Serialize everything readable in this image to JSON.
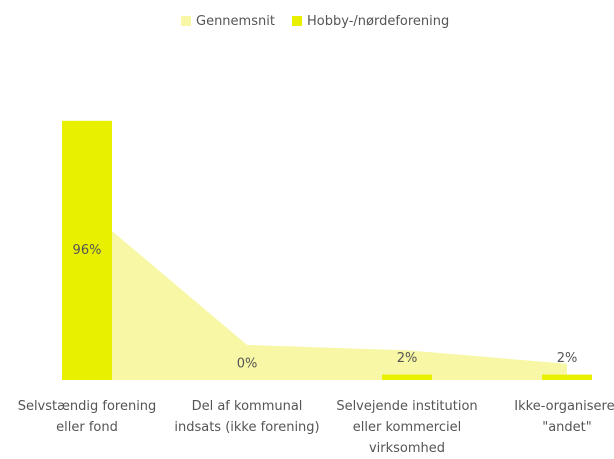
{
  "chart_data": {
    "type": "bar",
    "categories": [
      "Selvstændig forening eller fond",
      "Del af kommunal indsats (ikke forening)",
      "Selvejende institution eller kommerciel virksomhed",
      "Ikke-organiseret \"andet\""
    ],
    "series": [
      {
        "name": "Gennemsnit",
        "type": "area",
        "color": "#f7f7a6",
        "values": [
          63,
          13,
          11,
          6
        ]
      },
      {
        "name": "Hobby-/nørdeforening",
        "type": "bar",
        "color": "#e8f000",
        "values": [
          96,
          0,
          2,
          2
        ],
        "value_labels": [
          "96%",
          "0%",
          "2%",
          "2%"
        ]
      }
    ],
    "ylim": [
      0,
      100
    ],
    "grid": false,
    "legend": "top"
  }
}
